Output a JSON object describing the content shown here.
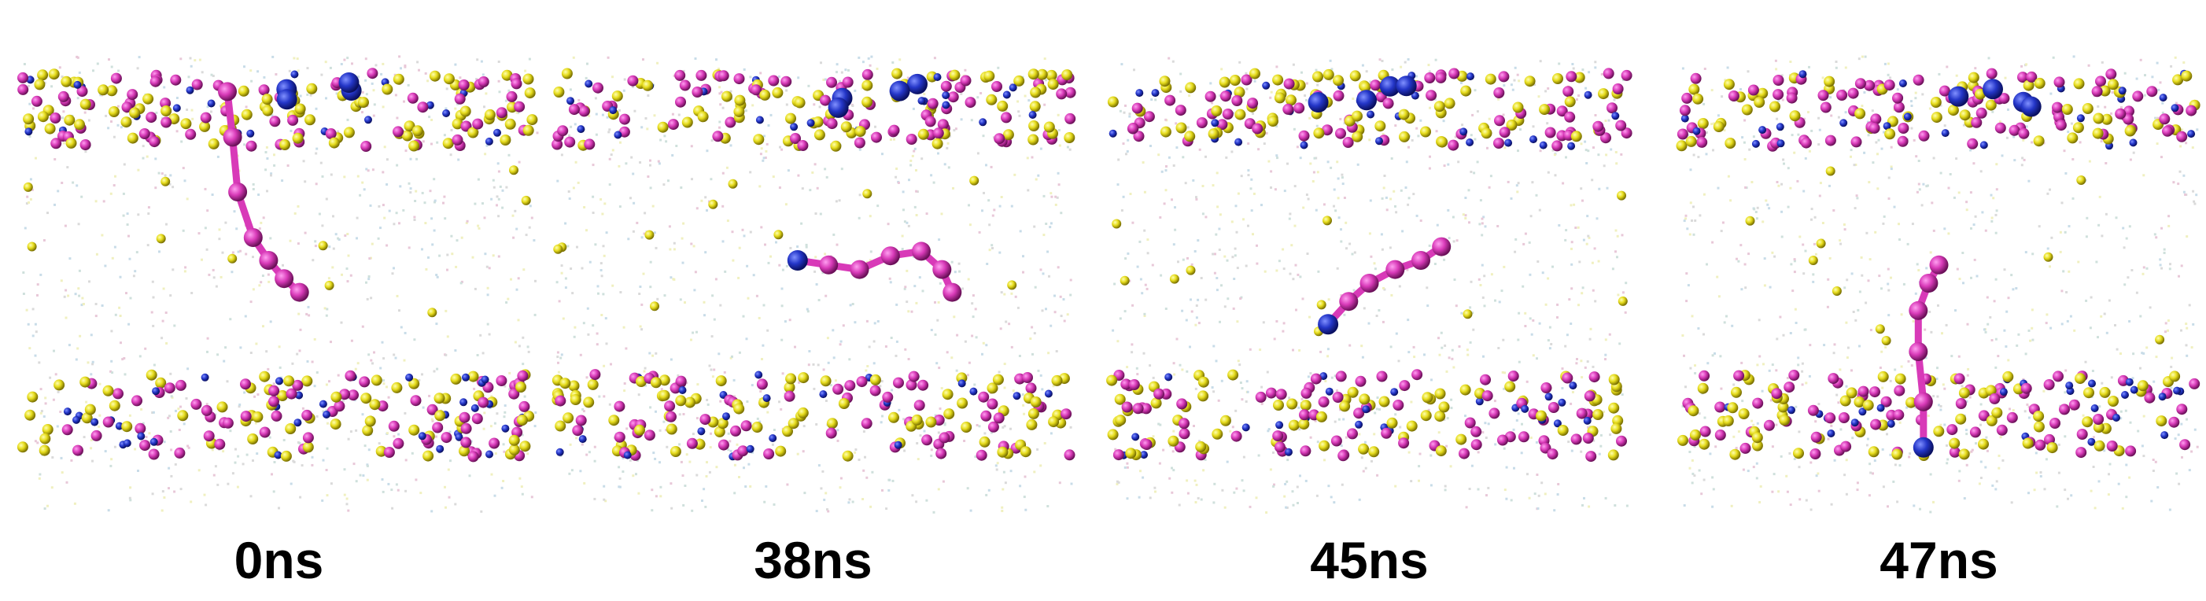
{
  "panels": [
    {
      "label": "0ns"
    },
    {
      "label": "38ns"
    },
    {
      "label": "45ns"
    },
    {
      "label": "47ns"
    }
  ]
}
